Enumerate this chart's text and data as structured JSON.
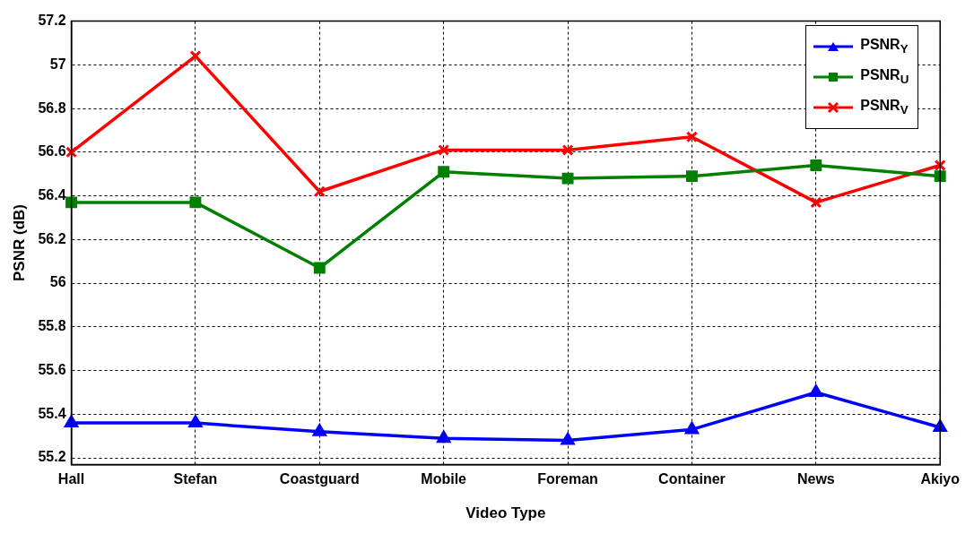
{
  "chart_data": {
    "type": "line",
    "xlabel": "Video Type",
    "ylabel": "PSNR (dB)",
    "categories": [
      "Hall",
      "Stefan",
      "Coastguard",
      "Mobile",
      "Foreman",
      "Container",
      "News",
      "Akiyo"
    ],
    "series": [
      {
        "name": "PSNR$_{Y}$",
        "color": "#0000ff",
        "marker": "triangle",
        "values": [
          55.36,
          55.36,
          55.32,
          55.29,
          55.28,
          55.33,
          55.5,
          55.34
        ]
      },
      {
        "name": "PSNR$_{U}$",
        "color": "#008000",
        "marker": "square",
        "values": [
          56.37,
          56.37,
          56.07,
          56.51,
          56.48,
          56.49,
          56.54,
          56.49
        ]
      },
      {
        "name": "PSNR$_{V}$",
        "color": "#ff0000",
        "marker": "cross",
        "values": [
          56.6,
          57.04,
          56.42,
          56.61,
          56.61,
          56.67,
          56.37,
          56.54
        ]
      }
    ],
    "ylim": [
      55.17,
      57.2
    ],
    "yticks": [
      55.2,
      55.4,
      55.6,
      55.8,
      56,
      56.2,
      56.4,
      56.6,
      56.8,
      57,
      57.2
    ],
    "grid": true,
    "legend": "top right",
    "line_style": "solid"
  }
}
